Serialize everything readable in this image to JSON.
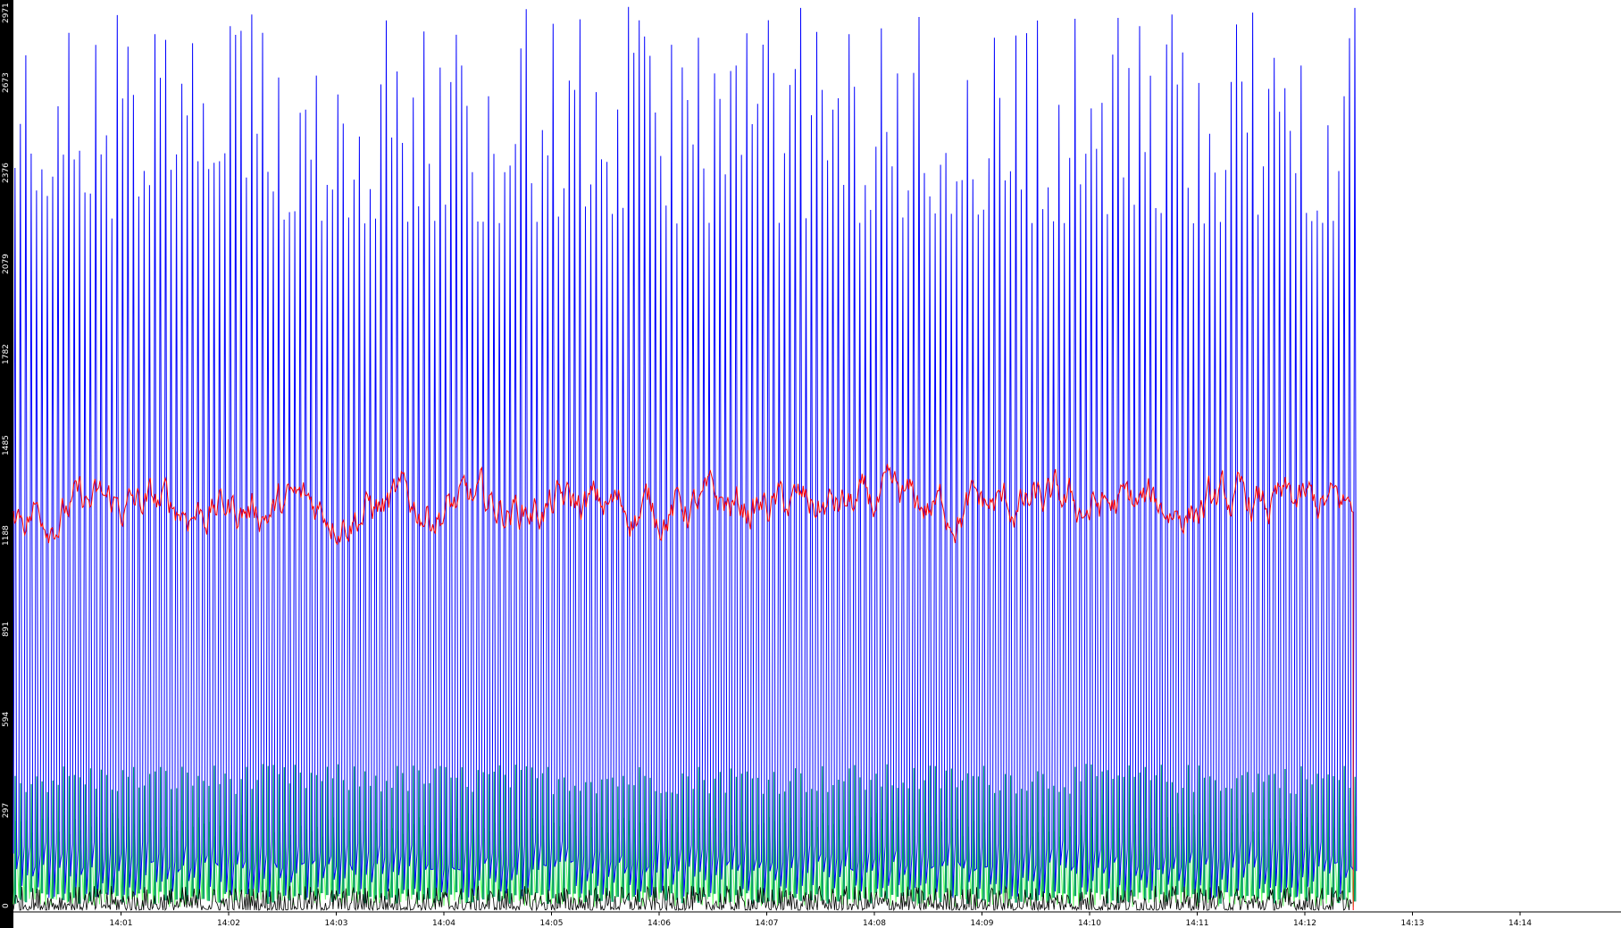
{
  "chart_data": {
    "type": "line",
    "title": "",
    "xlabel": "",
    "ylabel": "",
    "ylim": [
      0,
      2971
    ],
    "yticks": [
      0,
      297,
      594,
      891,
      1188,
      1485,
      1782,
      2079,
      2376,
      2673,
      2971
    ],
    "xticks": [
      "14:01",
      "14:02",
      "14:03",
      "14:04",
      "14:05",
      "14:06",
      "14:07",
      "14:08",
      "14:09",
      "14:10",
      "14:11",
      "14:12",
      "14:13",
      "14:14"
    ],
    "x_range_minutes": [
      "14:00",
      "14:15"
    ],
    "data_end": "14:12:27",
    "grid": false,
    "legend": "none",
    "series": [
      {
        "color": "#0000ff",
        "style": "spikes",
        "spike_interval_seconds": 3,
        "peak_range": [
          2250,
          2971
        ],
        "trough_range": [
          40,
          160
        ],
        "mean_level": 180
      },
      {
        "color": "#ff0000",
        "style": "noisy",
        "mean": 1320,
        "range": [
          1130,
          1520
        ]
      },
      {
        "color": "#00a060",
        "style": "spikes",
        "peak_range": [
          380,
          480
        ],
        "trough_range": [
          20,
          60
        ]
      },
      {
        "color": "#66ff66",
        "style": "spikes",
        "peak_range": [
          240,
          320
        ],
        "trough_range": [
          10,
          40
        ]
      },
      {
        "color": "#000000",
        "style": "noisy",
        "mean": 20,
        "range": [
          0,
          80
        ]
      }
    ]
  }
}
